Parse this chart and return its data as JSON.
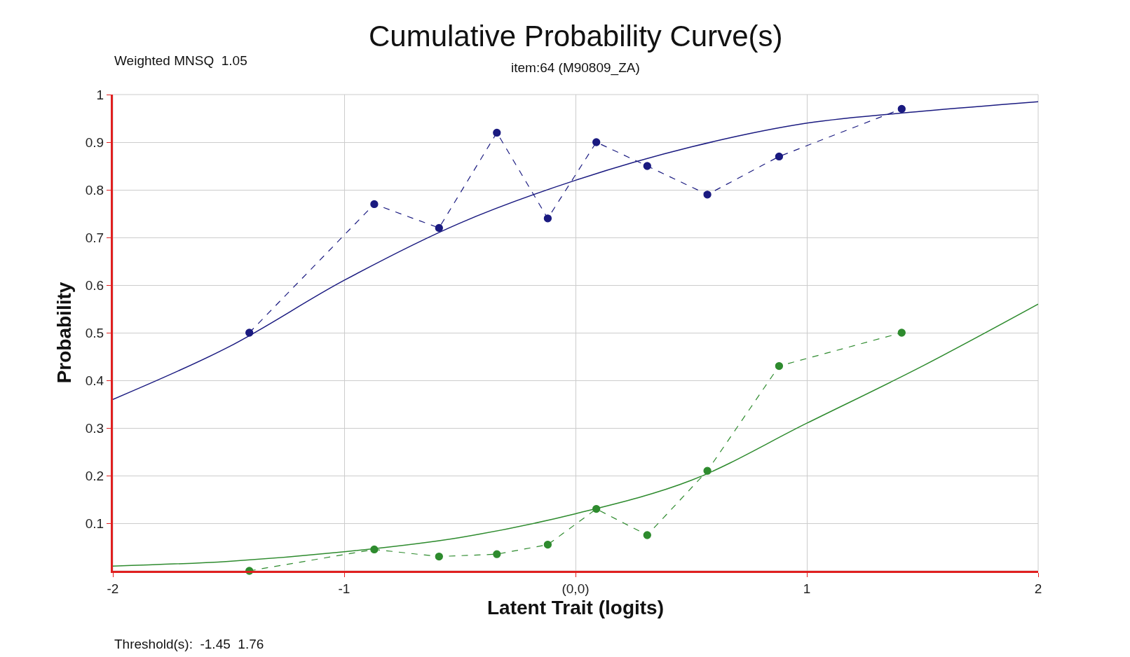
{
  "chart_data": {
    "type": "line",
    "title": "Cumulative Probability Curve(s)",
    "subtitle": "item:64 (M90809_ZA)",
    "xlabel": "Latent Trait (logits)",
    "ylabel": "Probability",
    "annotations": [
      "Weighted MNSQ  1.05",
      "Threshold(s):  -1.45  1.76"
    ],
    "xlim": [
      -2,
      2
    ],
    "xticks": [
      -2,
      -1,
      {
        "value": 0,
        "label": "(0,0)"
      },
      1,
      2
    ],
    "ylim": [
      0,
      1
    ],
    "yticks": [
      0.1,
      0.2,
      0.3,
      0.4,
      0.5,
      0.6,
      0.7,
      0.8,
      0.9,
      1
    ],
    "grid": true,
    "series": [
      {
        "color": "#1a1a80",
        "line_style": "solid",
        "marker": "none",
        "x": [
          -2,
          -1.5,
          -1,
          -0.5,
          0,
          0.5,
          1,
          1.5,
          2
        ],
        "values": [
          0.36,
          0.47,
          0.61,
          0.73,
          0.82,
          0.89,
          0.94,
          0.965,
          0.985
        ]
      },
      {
        "color": "#1a1a80",
        "line_style": "dashed",
        "marker": "circle",
        "x": [
          -1.41,
          -0.87,
          -0.59,
          -0.34,
          -0.12,
          0.09,
          0.31,
          0.57,
          0.88,
          1.41
        ],
        "values": [
          0.5,
          0.77,
          0.72,
          0.92,
          0.74,
          0.9,
          0.85,
          0.79,
          0.87,
          0.97
        ]
      },
      {
        "color": "#2e8b2e",
        "line_style": "solid",
        "marker": "none",
        "x": [
          -2,
          -1.5,
          -1,
          -0.5,
          0,
          0.5,
          1,
          1.5,
          2
        ],
        "values": [
          0.01,
          0.02,
          0.04,
          0.07,
          0.12,
          0.19,
          0.31,
          0.43,
          0.56
        ]
      },
      {
        "color": "#2e8b2e",
        "line_style": "dashed",
        "marker": "circle",
        "x": [
          -1.41,
          -0.87,
          -0.59,
          -0.34,
          -0.12,
          0.09,
          0.31,
          0.57,
          0.88,
          1.41
        ],
        "values": [
          0.0,
          0.045,
          0.03,
          0.035,
          0.055,
          0.13,
          0.075,
          0.21,
          0.43,
          0.5
        ]
      }
    ]
  }
}
